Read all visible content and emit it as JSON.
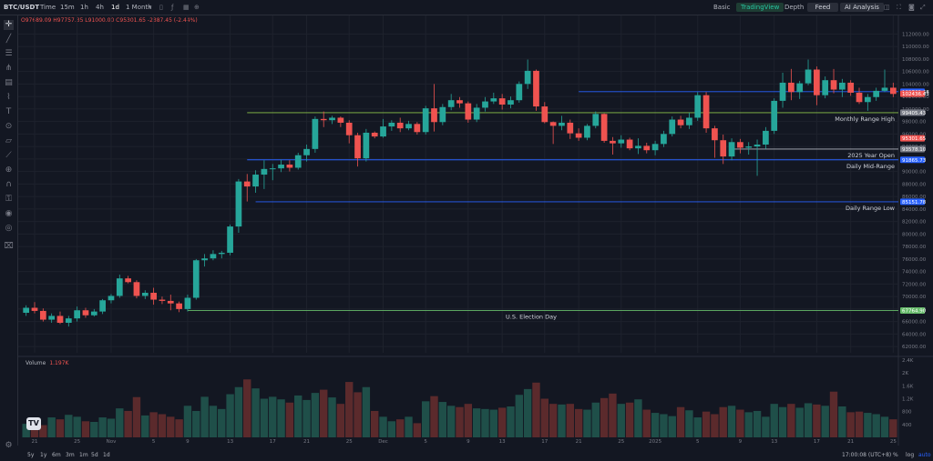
{
  "header": {
    "symbol": "BTC/USDT",
    "intervals": [
      "Time",
      "15m",
      "1h",
      "4h",
      "1d",
      "1 Month"
    ],
    "active_interval": "1d",
    "tabs": [
      "Basic",
      "TradingView",
      "Depth",
      "Feed",
      "AI Analysis"
    ],
    "active_tab": "TradingView"
  },
  "ohlc_readout": "O97689.09 H97757.35 L91000.00 C95301.65 -2387.45 (-2.44%)",
  "volume_label": "Volume",
  "volume_value": "1.197K",
  "bottom": {
    "ranges": [
      "5y",
      "1y",
      "6m",
      "3m",
      "1m",
      "5d",
      "1d"
    ],
    "clock": "17:00:08 (UTC+8)",
    "options": [
      "%",
      "log",
      "auto"
    ]
  },
  "colors": {
    "up": "#26a69a",
    "down": "#ef5350",
    "background": "#131722",
    "grid": "#1e222d"
  },
  "chart_data": {
    "type": "candlestick",
    "y_axis_ticks": [
      112000,
      110000,
      108000,
      106000,
      104000,
      102000,
      100000,
      98000,
      96000,
      94000,
      92000,
      90000,
      88000,
      86000,
      84000,
      82000,
      80000,
      78000,
      76000,
      74000,
      72000,
      70000,
      68000,
      66000,
      64000,
      62000
    ],
    "ylim": [
      61000,
      113500
    ],
    "x_axis_ticks": [
      "21",
      "25",
      "Nov",
      "5",
      "9",
      "13",
      "17",
      "21",
      "25",
      "Dec",
      "5",
      "9",
      "13",
      "17",
      "21",
      "25",
      "2025",
      "5",
      "9",
      "13",
      "17",
      "21",
      "25"
    ],
    "price_markers": [
      {
        "value": "102763.68",
        "color": "#2962ff"
      },
      {
        "value": "102436.43",
        "color": "#ef5350"
      },
      {
        "value": "99405.43",
        "color": "#787b86"
      },
      {
        "value": "95301.65",
        "color": "#ef5350"
      },
      {
        "value": "93578.10",
        "color": "#787b86"
      },
      {
        "value": "91865.73",
        "color": "#2962ff"
      },
      {
        "value": "85151.78",
        "color": "#2962ff"
      },
      {
        "value": "67764.90",
        "color": "#66bb6a"
      }
    ],
    "levels": [
      {
        "label": "",
        "value": 102763.68,
        "color": "#2962ff",
        "start_index": 65
      },
      {
        "label": "Monthly Range High",
        "value": 99405.43,
        "color": "#8bc34a",
        "start_index": 26
      },
      {
        "label": "2025 Year Open",
        "value": 93578.1,
        "color": "#b2b5be",
        "start_index": 83
      },
      {
        "label": "Daily Mid-Range",
        "value": 91865.73,
        "color": "#2962ff",
        "start_index": 26
      },
      {
        "label": "Daily Range Low",
        "value": 85151.78,
        "color": "#2962ff",
        "start_index": 27
      },
      {
        "label": "U.S. Election Day",
        "value": 67764.9,
        "color": "#66bb6a",
        "start_index": 19
      }
    ],
    "volume_ticks": [
      "2.4K",
      "2K",
      "1.6K",
      "1.2K",
      "800",
      "400"
    ],
    "volume_max": 2400,
    "candles": [
      [
        67400,
        68600,
        66900,
        68200
      ],
      [
        68200,
        69100,
        67300,
        67700
      ],
      [
        67700,
        68100,
        66000,
        66300
      ],
      [
        66300,
        67300,
        65800,
        66900
      ],
      [
        66900,
        67600,
        65600,
        65800
      ],
      [
        65800,
        66900,
        65200,
        66500
      ],
      [
        66500,
        68400,
        66000,
        67800
      ],
      [
        67800,
        68200,
        66600,
        67000
      ],
      [
        67000,
        68000,
        66800,
        67600
      ],
      [
        67600,
        69600,
        67200,
        69400
      ],
      [
        69400,
        70400,
        68900,
        70100
      ],
      [
        70100,
        73500,
        69800,
        72900
      ],
      [
        72900,
        73300,
        72100,
        72300
      ],
      [
        72300,
        72600,
        69700,
        70100
      ],
      [
        70100,
        71000,
        69600,
        70600
      ],
      [
        70600,
        71400,
        68700,
        69500
      ],
      [
        69500,
        70000,
        68800,
        69300
      ],
      [
        69300,
        70300,
        67800,
        68900
      ],
      [
        68900,
        69200,
        67500,
        68000
      ],
      [
        68000,
        70300,
        67600,
        69800
      ],
      [
        69800,
        76000,
        69500,
        75800
      ],
      [
        75800,
        76800,
        74800,
        76100
      ],
      [
        76100,
        77400,
        75800,
        76800
      ],
      [
        76800,
        77300,
        76100,
        77000
      ],
      [
        77000,
        81500,
        76600,
        81200
      ],
      [
        81200,
        88800,
        80200,
        88400
      ],
      [
        88400,
        89600,
        85200,
        87600
      ],
      [
        87600,
        90200,
        86600,
        89500
      ],
      [
        89500,
        91800,
        87200,
        90400
      ],
      [
        90400,
        91200,
        88600,
        90500
      ],
      [
        90500,
        91900,
        89900,
        91100
      ],
      [
        91100,
        91800,
        90000,
        90600
      ],
      [
        90600,
        93000,
        90300,
        92600
      ],
      [
        92600,
        94300,
        91600,
        93600
      ],
      [
        93600,
        98800,
        93000,
        98400
      ],
      [
        98400,
        99600,
        97100,
        98200
      ],
      [
        98200,
        98900,
        97600,
        98600
      ],
      [
        98600,
        98800,
        97100,
        97800
      ],
      [
        97800,
        98200,
        94500,
        95800
      ],
      [
        95800,
        96200,
        90800,
        92100
      ],
      [
        92100,
        96800,
        91600,
        96200
      ],
      [
        96200,
        96400,
        95300,
        95600
      ],
      [
        95600,
        98400,
        95400,
        97200
      ],
      [
        97200,
        98200,
        96500,
        97800
      ],
      [
        97800,
        98600,
        96300,
        96900
      ],
      [
        96900,
        98100,
        96600,
        97600
      ],
      [
        97600,
        97900,
        95900,
        96300
      ],
      [
        96300,
        100500,
        95900,
        100100
      ],
      [
        100100,
        104000,
        96400,
        97900
      ],
      [
        97900,
        100800,
        97400,
        100300
      ],
      [
        100300,
        102400,
        99800,
        101400
      ],
      [
        101400,
        101900,
        100200,
        100900
      ],
      [
        100900,
        101200,
        97800,
        98300
      ],
      [
        98300,
        100800,
        97900,
        100200
      ],
      [
        100200,
        101900,
        99600,
        101200
      ],
      [
        101200,
        102600,
        100800,
        101700
      ],
      [
        101700,
        102400,
        99900,
        100700
      ],
      [
        100700,
        102000,
        100100,
        101400
      ],
      [
        101400,
        104400,
        101000,
        104000
      ],
      [
        104000,
        107900,
        103200,
        106100
      ],
      [
        106100,
        106300,
        99700,
        100400
      ],
      [
        100400,
        101100,
        97700,
        97900
      ],
      [
        97900,
        98000,
        94400,
        97300
      ],
      [
        97300,
        98900,
        96600,
        97800
      ],
      [
        97800,
        98300,
        95200,
        96100
      ],
      [
        96100,
        96900,
        94900,
        95400
      ],
      [
        95400,
        97600,
        95000,
        97300
      ],
      [
        97300,
        99600,
        96900,
        99200
      ],
      [
        99200,
        99300,
        94600,
        94900
      ],
      [
        94900,
        95500,
        92700,
        94500
      ],
      [
        94500,
        95800,
        93800,
        95100
      ],
      [
        95100,
        95400,
        93400,
        93700
      ],
      [
        93700,
        95300,
        92800,
        94100
      ],
      [
        94100,
        94600,
        92900,
        93400
      ],
      [
        93400,
        94900,
        92600,
        94400
      ],
      [
        94400,
        96500,
        93900,
        96000
      ],
      [
        96000,
        98800,
        95600,
        98300
      ],
      [
        98300,
        98900,
        96900,
        97400
      ],
      [
        97400,
        99400,
        96800,
        98600
      ],
      [
        98600,
        102700,
        98100,
        102200
      ],
      [
        102200,
        102700,
        96200,
        96900
      ],
      [
        96900,
        97300,
        92200,
        95000
      ],
      [
        95000,
        95900,
        91200,
        92400
      ],
      [
        92400,
        95300,
        91800,
        94700
      ],
      [
        94700,
        95200,
        92900,
        93800
      ],
      [
        93800,
        94700,
        92700,
        94000
      ],
      [
        94000,
        95100,
        89300,
        94300
      ],
      [
        94300,
        97100,
        93600,
        96500
      ],
      [
        96500,
        101700,
        96000,
        101300
      ],
      [
        101300,
        105800,
        100200,
        104200
      ],
      [
        104200,
        106400,
        101400,
        102700
      ],
      [
        102700,
        104500,
        101600,
        104100
      ],
      [
        104100,
        107900,
        103800,
        106300
      ],
      [
        106300,
        106800,
        100600,
        102200
      ],
      [
        102200,
        105200,
        101700,
        104600
      ],
      [
        104600,
        106400,
        102500,
        103100
      ],
      [
        103100,
        104800,
        101900,
        104200
      ],
      [
        104200,
        104600,
        102100,
        102600
      ],
      [
        102600,
        103400,
        100800,
        101100
      ],
      [
        101100,
        102400,
        99700,
        101900
      ],
      [
        101900,
        103400,
        101300,
        102900
      ],
      [
        102900,
        106300,
        102700,
        103400
      ],
      [
        103400,
        104200,
        101900,
        102400
      ]
    ],
    "volumes": [
      420,
      520,
      380,
      620,
      560,
      700,
      640,
      500,
      480,
      620,
      580,
      900,
      820,
      1250,
      680,
      780,
      720,
      640,
      560,
      980,
      820,
      1260,
      980,
      880,
      1340,
      1560,
      1800,
      1520,
      1200,
      1260,
      1180,
      1080,
      1300,
      1160,
      1380,
      1480,
      1240,
      1040,
      1720,
      1400,
      1560,
      820,
      640,
      500,
      560,
      640,
      440,
      1120,
      1280,
      1100,
      980,
      940,
      1040,
      900,
      880,
      860,
      920,
      960,
      1320,
      1500,
      1700,
      1200,
      1040,
      1020,
      1040,
      880,
      860,
      1080,
      1220,
      1360,
      1040,
      1080,
      1180,
      860,
      760,
      720,
      660,
      940,
      840,
      620,
      800,
      720,
      940,
      980,
      860,
      780,
      820,
      640,
      1040,
      940,
      1040,
      920,
      1060,
      1020,
      980,
      1420,
      960,
      780,
      800,
      760,
      720,
      640,
      560
    ]
  }
}
